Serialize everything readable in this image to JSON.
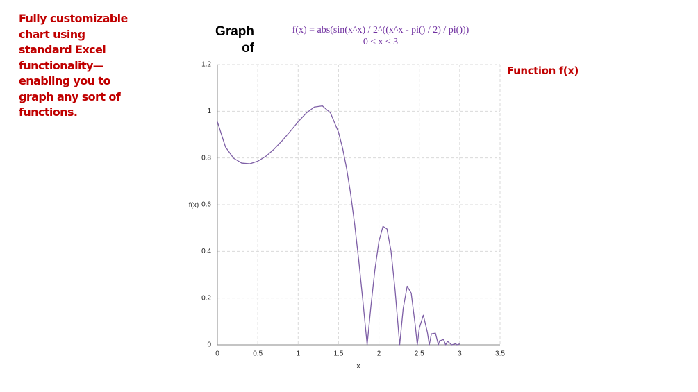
{
  "chart_data": {
    "type": "line",
    "annotation": "Fully customizable chart using standard Excel functionality—enabling you to graph any sort of functions.",
    "title": "Graph of",
    "subtitle": [
      "f(x) = abs(sin(x^x) / 2^((x^x - pi() / 2) / pi()))",
      "0 ≤ x ≤ 3"
    ],
    "x_label": "x",
    "y_label": "f(x)",
    "x": [
      0,
      0.1,
      0.2,
      0.3,
      0.4,
      0.5,
      0.6,
      0.7,
      0.8,
      0.9,
      1.0,
      1.1,
      1.2,
      1.3,
      1.4,
      1.5,
      1.55,
      1.6,
      1.65,
      1.7,
      1.75,
      1.8,
      1.85,
      1.854,
      1.9,
      1.95,
      2.0,
      2.05,
      2.1,
      2.15,
      2.2,
      2.25,
      2.257,
      2.3,
      2.35,
      2.4,
      2.45,
      2.475,
      2.5,
      2.55,
      2.6,
      2.624,
      2.65,
      2.7,
      2.736,
      2.75,
      2.8,
      2.826,
      2.85,
      2.902,
      2.95,
      2.966,
      3.0
    ],
    "series": [
      {
        "name": "Function f(x)",
        "color": "#7e5fa6",
        "values": [
          0.955,
          0.847,
          0.799,
          0.778,
          0.775,
          0.786,
          0.807,
          0.837,
          0.873,
          0.913,
          0.955,
          0.992,
          1.018,
          1.023,
          0.993,
          0.91,
          0.842,
          0.755,
          0.646,
          0.515,
          0.362,
          0.193,
          0.015,
          0,
          0.162,
          0.321,
          0.443,
          0.507,
          0.496,
          0.401,
          0.235,
          0.03,
          0,
          0.154,
          0.251,
          0.221,
          0.083,
          0,
          0.071,
          0.127,
          0.054,
          0,
          0.047,
          0.05,
          0,
          0.017,
          0.023,
          0,
          0.015,
          0,
          0.005,
          0,
          0.004
        ]
      }
    ],
    "xlim": [
      0,
      3.5
    ],
    "xticks": [
      0,
      0.5,
      1,
      1.5,
      2,
      2.5,
      3,
      3.5
    ],
    "ylim": [
      0,
      1.2
    ],
    "yticks": [
      0,
      0.2,
      0.4,
      0.6,
      0.8,
      1,
      1.2
    ],
    "grid": true
  }
}
